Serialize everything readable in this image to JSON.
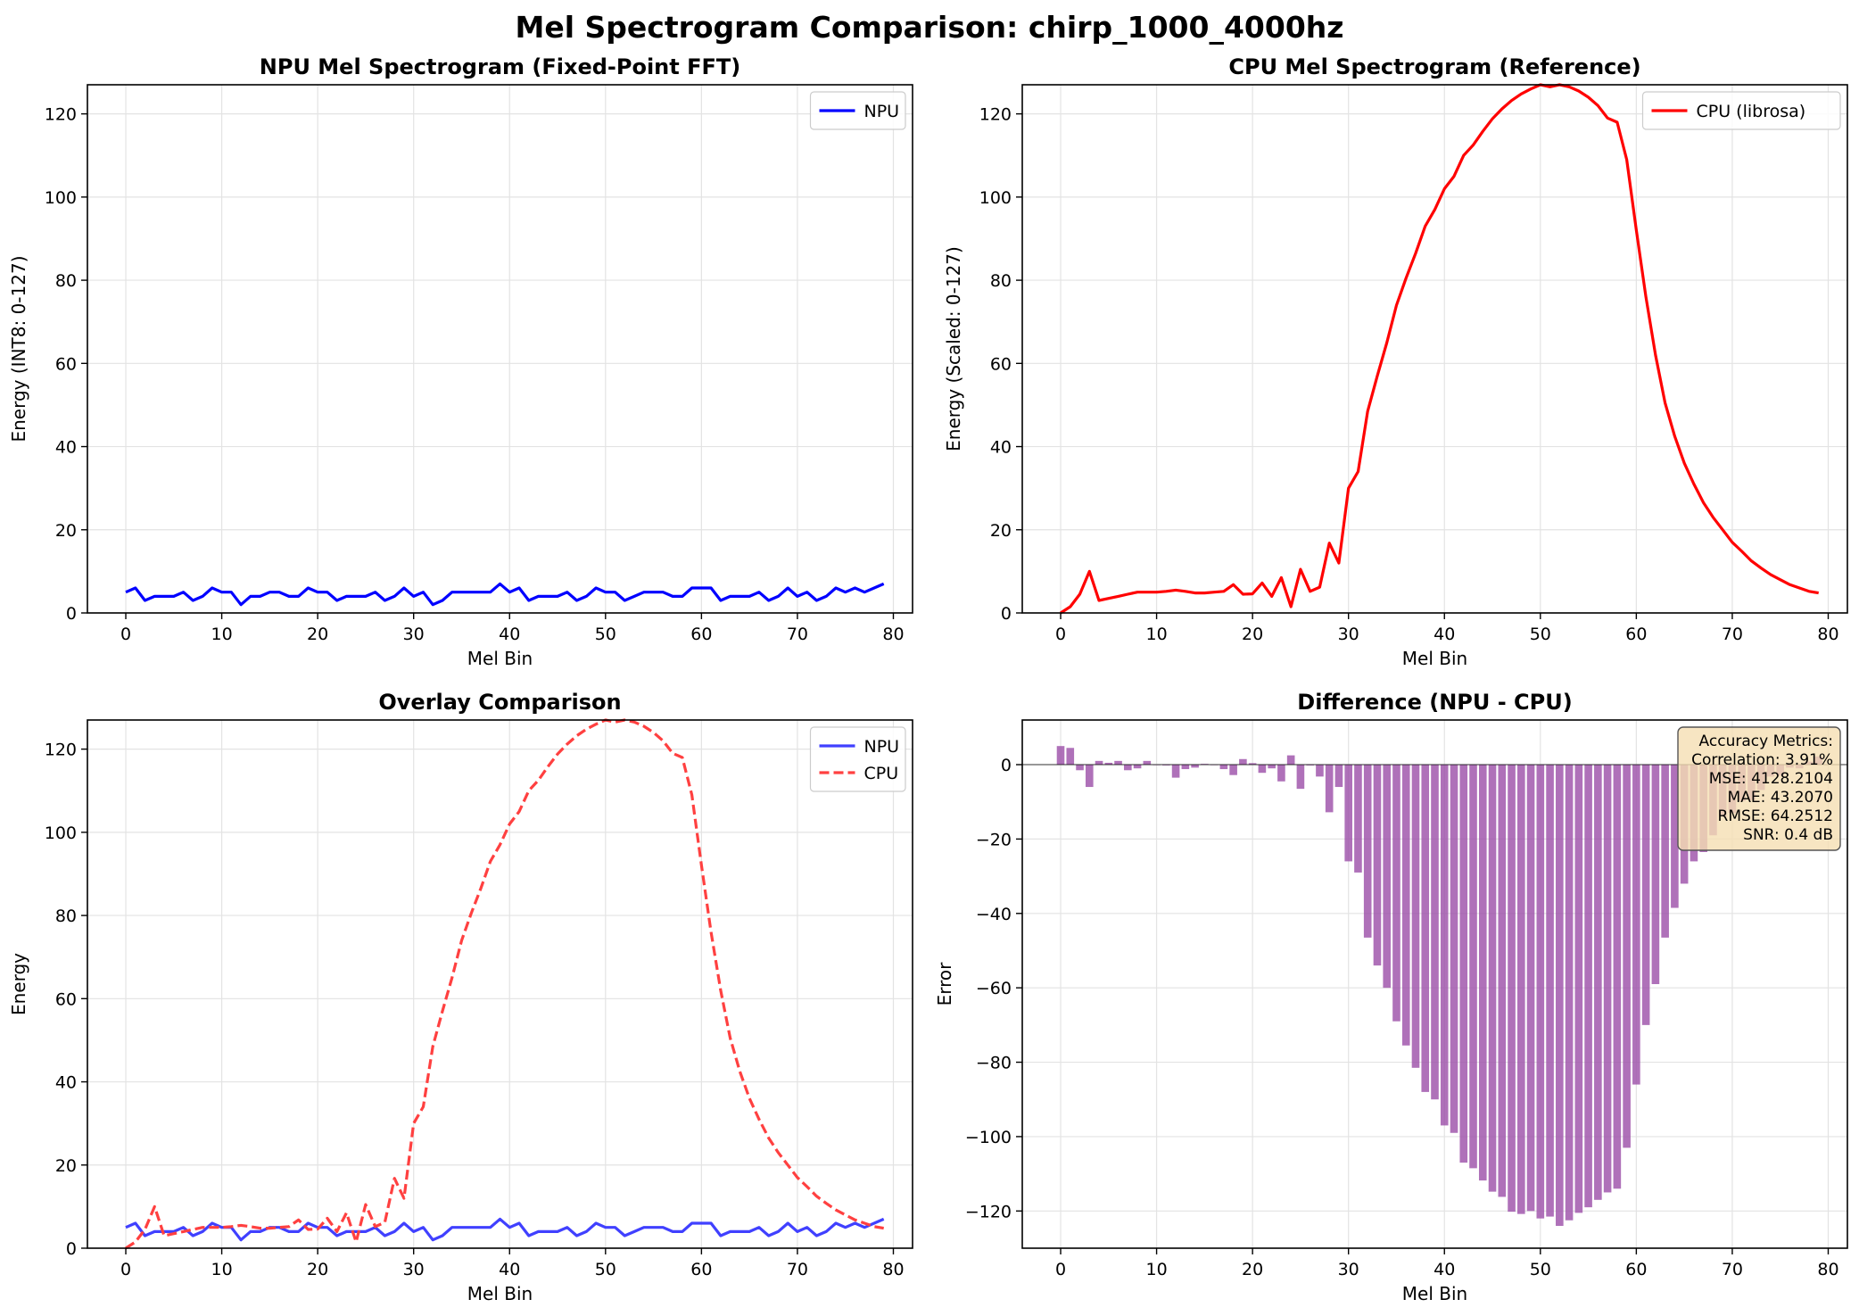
{
  "figure": {
    "title": "Mel Spectrogram Comparison: chirp_1000_4000hz"
  },
  "chart_data": [
    {
      "id": "npu",
      "type": "line",
      "title": "NPU Mel Spectrogram (Fixed-Point FFT)",
      "xlabel": "Mel Bin",
      "ylabel": "Energy (INT8: 0-127)",
      "xlim": [
        -4,
        82
      ],
      "ylim": [
        0,
        127
      ],
      "xticks": [
        0,
        10,
        20,
        30,
        40,
        50,
        60,
        70,
        80
      ],
      "yticks": [
        0,
        20,
        40,
        60,
        80,
        100,
        120
      ],
      "grid": true,
      "legend": "top-right",
      "series": [
        {
          "name": "NPU",
          "color": "#0000ff",
          "style": "solid",
          "values": [
            5,
            6,
            3,
            4,
            4,
            4,
            5,
            3,
            4,
            6,
            5,
            5,
            2,
            4,
            4,
            5,
            5,
            4,
            4,
            6,
            5,
            5,
            3,
            4,
            4,
            4,
            5,
            3,
            4,
            6,
            4,
            5,
            2,
            3,
            5,
            5,
            5,
            5,
            5,
            7,
            5,
            6,
            3,
            4,
            4,
            4,
            5,
            3,
            4,
            6,
            5,
            5,
            3,
            4,
            5,
            5,
            5,
            4,
            4,
            6,
            6,
            6,
            3,
            4,
            4,
            4,
            5,
            3,
            4,
            6,
            4,
            5,
            3,
            4,
            6,
            5,
            6,
            5,
            6,
            7
          ]
        }
      ]
    },
    {
      "id": "cpu",
      "type": "line",
      "title": "CPU Mel Spectrogram (Reference)",
      "xlabel": "Mel Bin",
      "ylabel": "Energy (Scaled: 0-127)",
      "xlim": [
        -4,
        82
      ],
      "ylim": [
        0,
        127
      ],
      "xticks": [
        0,
        10,
        20,
        30,
        40,
        50,
        60,
        70,
        80
      ],
      "yticks": [
        0,
        20,
        40,
        60,
        80,
        100,
        120
      ],
      "grid": true,
      "legend": "top-right",
      "series": [
        {
          "name": "CPU (librosa)",
          "color": "#ff0000",
          "style": "solid",
          "values": [
            0,
            1.5,
            4.5,
            10,
            3,
            3.5,
            4,
            4.5,
            5,
            5,
            5,
            5.2,
            5.5,
            5.2,
            4.8,
            4.8,
            5,
            5.2,
            6.8,
            4.5,
            4.6,
            7.2,
            4,
            8.5,
            1.5,
            10.5,
            5.2,
            6.2,
            16.8,
            12,
            30,
            34,
            48.5,
            57,
            65,
            74,
            80.5,
            86.5,
            93,
            97,
            102,
            105,
            110,
            112.5,
            115.8,
            118.8,
            121.2,
            123.2,
            124.8,
            126,
            127,
            126.5,
            127,
            126.5,
            125.5,
            124,
            122,
            119,
            118,
            109,
            92,
            76,
            62,
            50.5,
            42.5,
            36,
            31,
            26.5,
            23,
            20,
            17,
            14.8,
            12.5,
            10.8,
            9.2,
            8,
            6.8,
            6,
            5.2,
            4.8
          ]
        }
      ]
    },
    {
      "id": "overlay",
      "type": "line",
      "title": "Overlay Comparison",
      "xlabel": "Mel Bin",
      "ylabel": "Energy",
      "xlim": [
        -4,
        82
      ],
      "ylim": [
        0,
        127
      ],
      "xticks": [
        0,
        10,
        20,
        30,
        40,
        50,
        60,
        70,
        80
      ],
      "yticks": [
        0,
        20,
        40,
        60,
        80,
        100,
        120
      ],
      "grid": true,
      "legend": "top-right",
      "series": [
        {
          "name": "NPU",
          "color": "#4040ff",
          "style": "solid",
          "values": [
            5,
            6,
            3,
            4,
            4,
            4,
            5,
            3,
            4,
            6,
            5,
            5,
            2,
            4,
            4,
            5,
            5,
            4,
            4,
            6,
            5,
            5,
            3,
            4,
            4,
            4,
            5,
            3,
            4,
            6,
            4,
            5,
            2,
            3,
            5,
            5,
            5,
            5,
            5,
            7,
            5,
            6,
            3,
            4,
            4,
            4,
            5,
            3,
            4,
            6,
            5,
            5,
            3,
            4,
            5,
            5,
            5,
            4,
            4,
            6,
            6,
            6,
            3,
            4,
            4,
            4,
            5,
            3,
            4,
            6,
            4,
            5,
            3,
            4,
            6,
            5,
            6,
            5,
            6,
            7
          ]
        },
        {
          "name": "CPU",
          "color": "#ff4040",
          "style": "dashed",
          "values": [
            0,
            1.5,
            4.5,
            10,
            3,
            3.5,
            4,
            4.5,
            5,
            5,
            5,
            5.2,
            5.5,
            5.2,
            4.8,
            4.8,
            5,
            5.2,
            6.8,
            4.5,
            4.6,
            7.2,
            4,
            8.5,
            1.5,
            10.5,
            5.2,
            6.2,
            16.8,
            12,
            30,
            34,
            48.5,
            57,
            65,
            74,
            80.5,
            86.5,
            93,
            97,
            102,
            105,
            110,
            112.5,
            115.8,
            118.8,
            121.2,
            123.2,
            124.8,
            126,
            127,
            126.5,
            127,
            126.5,
            125.5,
            124,
            122,
            119,
            118,
            109,
            92,
            76,
            62,
            50.5,
            42.5,
            36,
            31,
            26.5,
            23,
            20,
            17,
            14.8,
            12.5,
            10.8,
            9.2,
            8,
            6.8,
            6,
            5.2,
            4.8
          ]
        }
      ]
    },
    {
      "id": "diff",
      "type": "bar",
      "title": "Difference (NPU - CPU)",
      "xlabel": "Mel Bin",
      "ylabel": "Error",
      "xlim": [
        -4,
        82
      ],
      "ylim": [
        -130,
        12
      ],
      "xticks": [
        0,
        10,
        20,
        30,
        40,
        50,
        60,
        70,
        80
      ],
      "yticks": [
        0,
        -20,
        -40,
        -60,
        -80,
        -100,
        -120
      ],
      "ytick_labels": [
        "0",
        "−20",
        "−40",
        "−60",
        "−80",
        "−100",
        "−120"
      ],
      "grid": true,
      "bar_color": "#9b4ea8",
      "series": [
        {
          "values": [
            5,
            4.5,
            -1.5,
            -6,
            1,
            0.5,
            1,
            -1.5,
            -1,
            1,
            0,
            -0.2,
            -3.5,
            -1.2,
            -0.8,
            0.2,
            0,
            -1.2,
            -2.8,
            1.5,
            0.4,
            -2.2,
            -1,
            -4.5,
            2.5,
            -6.5,
            -0.2,
            -3.2,
            -12.8,
            -6,
            -26,
            -29,
            -46.5,
            -54,
            -60,
            -69,
            -75.5,
            -81.5,
            -88,
            -90,
            -97,
            -99,
            -107,
            -108.5,
            -111.8,
            -114.8,
            -116.2,
            -120.2,
            -120.8,
            -120,
            -122,
            -121.5,
            -124,
            -122.5,
            -120.5,
            -119,
            -117,
            -115,
            -114,
            -103,
            -86,
            -70,
            -59,
            -46.5,
            -38.5,
            -32,
            -26,
            -23.5,
            -19,
            -14,
            -13,
            -9.8,
            -9.5,
            -6.8,
            -3.2,
            -3,
            -0.8,
            -1,
            0.8,
            2.2
          ]
        }
      ],
      "metrics": {
        "title": "Accuracy Metrics:",
        "lines": [
          "Correlation: 3.91%",
          "MSE: 4128.2104",
          "MAE: 43.2070",
          "RMSE: 64.2512",
          "SNR: 0.4 dB"
        ]
      }
    }
  ]
}
